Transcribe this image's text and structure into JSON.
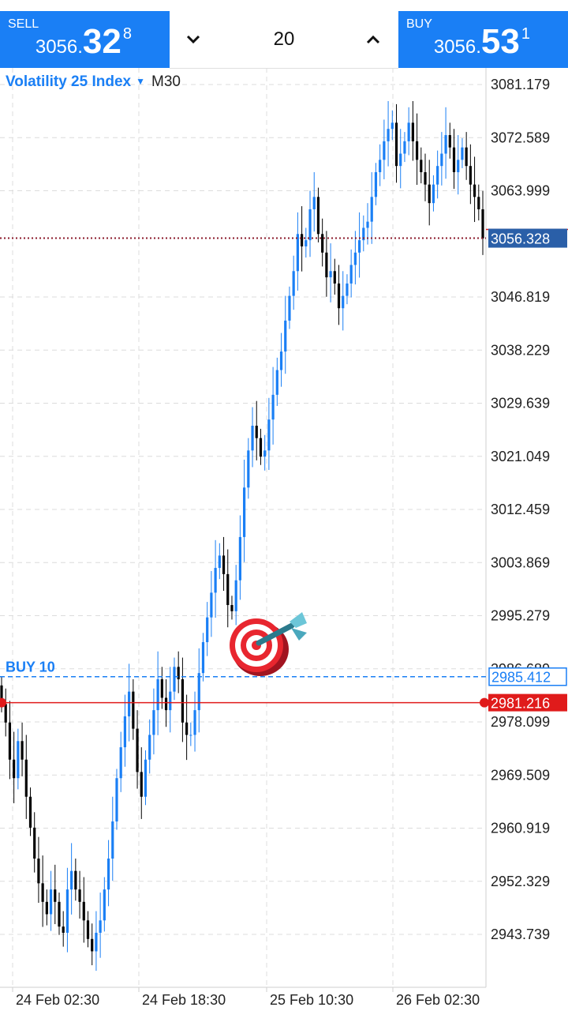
{
  "sell": {
    "label": "SELL",
    "price_small": "3056.",
    "price_big": "32",
    "price_sup": "8"
  },
  "buy": {
    "label": "BUY",
    "price_small": "3056.",
    "price_big": "53",
    "price_sup": "1"
  },
  "volume": {
    "value": "20",
    "down_icon": "chevron-down-icon",
    "up_icon": "chevron-up-icon"
  },
  "symbol": {
    "name": "Volatility 25 Index",
    "timeframe": "M30",
    "dropdown_icon": "triangle-down-icon"
  },
  "chart_data": {
    "type": "candlestick",
    "ylim": [
      2937.5,
      3085.0
    ],
    "y_ticks": [
      "3081.179",
      "3072.589",
      "3063.999",
      "3046.819",
      "3038.229",
      "3029.639",
      "3021.049",
      "3012.459",
      "3003.869",
      "2995.279",
      "2986.689",
      "2978.099",
      "2969.509",
      "2960.919",
      "2952.329",
      "2943.739"
    ],
    "x_labels": [
      "24 Feb 02:30",
      "24 Feb 18:30",
      "25 Feb 10:30",
      "26 Feb 02:30"
    ],
    "current_price": {
      "label": "3056.328",
      "value": 3056.328,
      "color": "#2a5fa8"
    },
    "position_line": {
      "text": "BUY 10",
      "label": "2985.412",
      "value": 2985.412,
      "color": "#1a7ff5"
    },
    "stop_loss_line": {
      "label": "2981.216",
      "value": 2981.216,
      "color": "#e01b1b"
    },
    "bull_color": "#1a7ff5",
    "bear_color": "#000000",
    "close_series": [
      2981,
      2978,
      2972,
      2969,
      2975,
      2972,
      2966,
      2961,
      2956,
      2952,
      2949,
      2947,
      2951,
      2949,
      2945,
      2944,
      2951,
      2954,
      2951,
      2949,
      2946,
      2943,
      2941,
      2944,
      2946,
      2951,
      2956,
      2962,
      2969,
      2974,
      2979,
      2983,
      2977,
      2970,
      2966,
      2972,
      2976,
      2980,
      2985,
      2982,
      2980,
      2983,
      2987,
      2985,
      2978,
      2976,
      2976,
      2980,
      2986,
      2991,
      2995,
      2999,
      3003,
      3005,
      3002,
      2997,
      2996,
      3001,
      3008,
      3016,
      3022,
      3026,
      3024,
      3021,
      3022,
      3027,
      3031,
      3035,
      3038,
      3043,
      3047,
      3051,
      3057,
      3055,
      3056,
      3061,
      3063,
      3057,
      3054,
      3050,
      3051,
      3049,
      3045,
      3047,
      3049,
      3052,
      3054,
      3056,
      3058,
      3059,
      3063,
      3067,
      3069,
      3072,
      3074,
      3075,
      3068,
      3070,
      3072,
      3075,
      3072,
      3069,
      3067,
      3065,
      3062,
      3065,
      3068,
      3070,
      3073,
      3071,
      3067,
      3069,
      3071,
      3068,
      3065,
      3063,
      3061,
      3056.3
    ]
  }
}
